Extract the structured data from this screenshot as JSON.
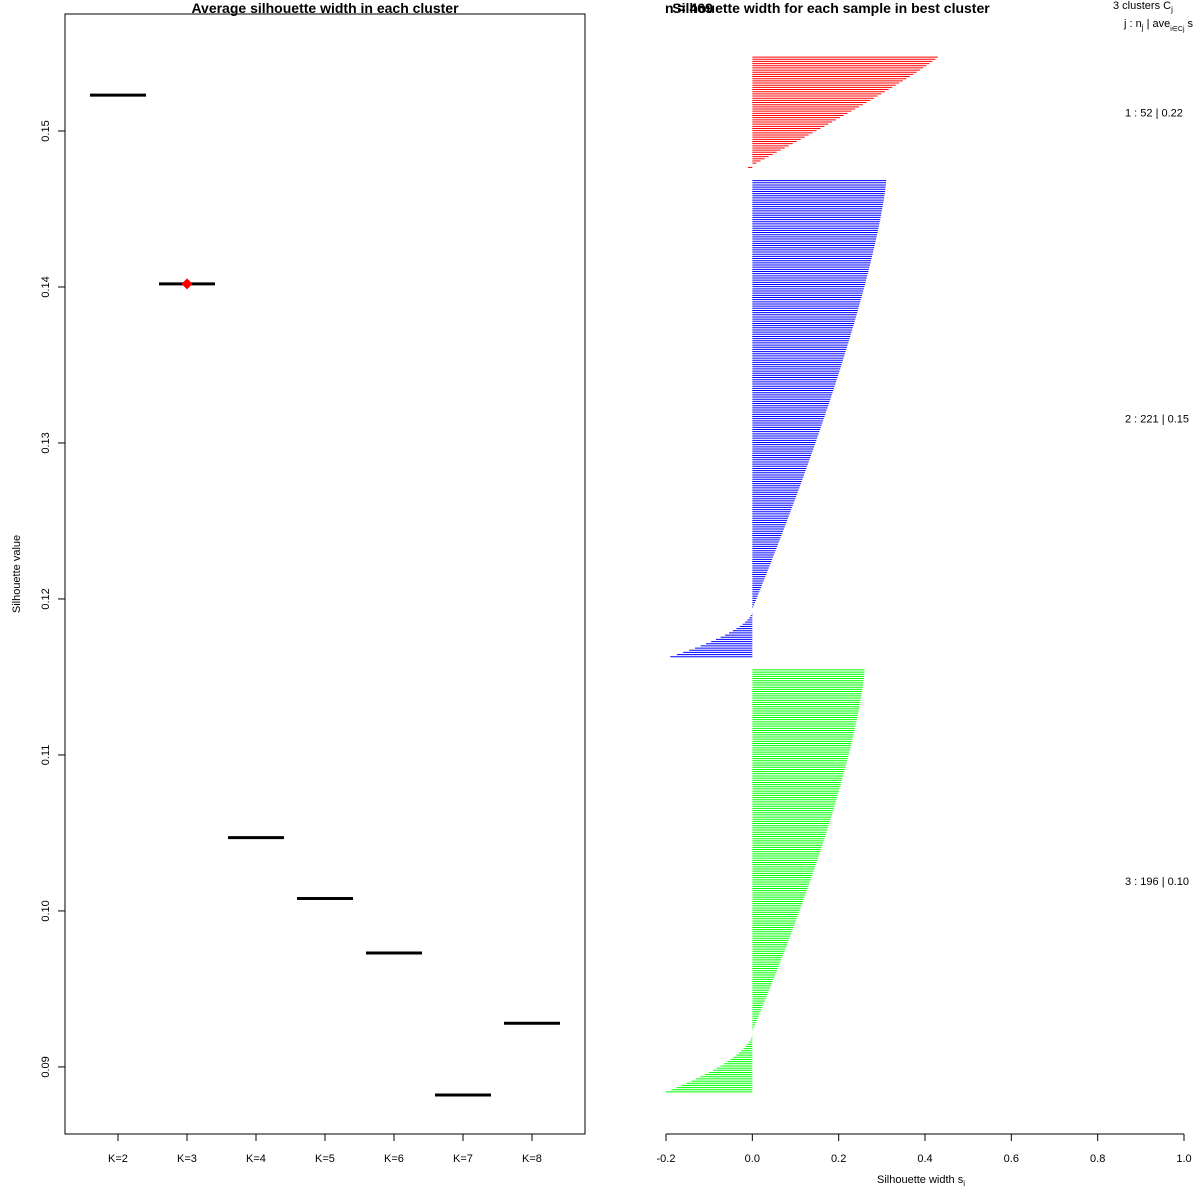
{
  "chart_data": [
    {
      "type": "dot-dash",
      "title": "Average silhouette width in each cluster",
      "ylabel": "Silhouette value",
      "xlabel": "",
      "categories": [
        "K=2",
        "K=3",
        "K=4",
        "K=5",
        "K=6",
        "K=7",
        "K=8"
      ],
      "values": [
        0.1523,
        0.1402,
        0.1047,
        0.1008,
        0.0973,
        0.0882,
        0.0928
      ],
      "best_index": 1,
      "best_marker_color": "#ff0000",
      "ylim": [
        0.0857,
        0.1575
      ],
      "yticks": [
        0.09,
        0.1,
        0.11,
        0.12,
        0.13,
        0.14,
        0.15
      ],
      "ytick_labels": [
        "0.09",
        "0.10",
        "0.11",
        "0.12",
        "0.13",
        "0.14",
        "0.15"
      ],
      "grid": false
    },
    {
      "type": "silhouette-bar",
      "title": "Silhouette width for each sample in best cluster",
      "title_overlap_text": "n = 469",
      "xlabel": "Silhouette width s",
      "xlabel_subscript": "i",
      "xlim": [
        -0.2,
        1.0
      ],
      "xticks": [
        -0.2,
        0.0,
        0.2,
        0.4,
        0.6,
        0.8,
        1.0
      ],
      "xtick_labels": [
        "-0.2",
        "0.0",
        "0.2",
        "0.4",
        "0.6",
        "0.8",
        "1.0"
      ],
      "header": {
        "line1": "3  clusters  C",
        "line1_sub": "j",
        "line2_a": "j :  n",
        "line2_a_sub": "j",
        "line2_b": " | ave",
        "line2_b_sub": "i∈Cj",
        "line2_c": "  s"
      },
      "clusters": [
        {
          "id": 1,
          "n": 52,
          "avg": "0.22",
          "color": "#ff0000",
          "label": "1 :   52  |  0.22",
          "max": 0.43,
          "min": -0.01,
          "shape": 1.1,
          "neg_count": 1
        },
        {
          "id": 2,
          "n": 221,
          "avg": "0.15",
          "color": "#0000ff",
          "label": "2 :   221  |  0.15",
          "max": 0.31,
          "min": -0.19,
          "shape": 1.3,
          "neg_count": 22
        },
        {
          "id": 3,
          "n": 196,
          "avg": "0.10",
          "color": "#00ff00",
          "label": "3 :   196  |  0.10",
          "max": 0.26,
          "min": -0.2,
          "shape": 1.35,
          "neg_count": 28
        }
      ]
    }
  ]
}
